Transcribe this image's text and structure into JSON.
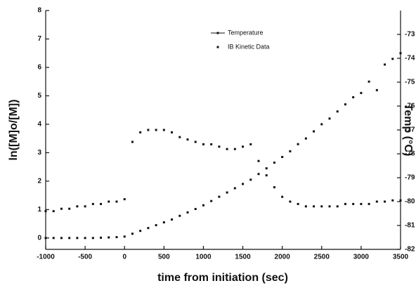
{
  "chart_data": {
    "type": "scatter",
    "x_label": "time from initiation (sec)",
    "y_label": "ln([M]o/[M])",
    "y2_label": "Temp (°C)",
    "xlim": [
      -1000,
      3500
    ],
    "xticks": [
      -1000,
      -500,
      0,
      500,
      1000,
      1500,
      2000,
      2500,
      3000,
      3500
    ],
    "ylim": [
      -0.4,
      8
    ],
    "yticks": [
      0,
      1,
      2,
      3,
      4,
      5,
      6,
      7,
      8
    ],
    "y2lim": [
      -82,
      -72
    ],
    "y2ticks": [
      -82,
      -81,
      -80,
      -79,
      -78,
      -77,
      -76,
      -75,
      -74,
      -73
    ],
    "legend": "upper center",
    "x": [
      -1000,
      -900,
      -800,
      -700,
      -600,
      -500,
      -400,
      -300,
      -200,
      -100,
      0,
      100,
      200,
      300,
      400,
      500,
      600,
      700,
      800,
      900,
      1000,
      1100,
      1200,
      1300,
      1400,
      1500,
      1600,
      1700,
      1800,
      1900,
      2000,
      2100,
      2200,
      2300,
      2400,
      2500,
      2600,
      2700,
      2800,
      2900,
      3000,
      3100,
      3200,
      3300,
      3400,
      3500
    ],
    "series": [
      {
        "name": "Temperature",
        "color": "#111111",
        "axis": "y2",
        "values": [
          -80.4,
          -80.4,
          -80.3,
          -80.3,
          -80.2,
          -80.2,
          -80.1,
          -80.1,
          -80.0,
          -80.0,
          -79.9,
          -77.5,
          -77.1,
          -77.0,
          -77.0,
          -77.0,
          -77.1,
          -77.3,
          -77.4,
          -77.5,
          -77.6,
          -77.6,
          -77.7,
          -77.8,
          -77.8,
          -77.7,
          -77.6,
          -78.3,
          -78.9,
          -79.4,
          -79.8,
          -80.0,
          -80.1,
          -80.2,
          -80.2,
          -80.2,
          -80.2,
          -80.2,
          -80.1,
          -80.1,
          -80.1,
          -80.1,
          -80.0,
          -80.0,
          -79.95,
          -79.95
        ]
      },
      {
        "name": "IB Kinetic Data",
        "color": "#111111",
        "values": [
          0,
          0,
          0,
          0,
          0,
          0,
          0,
          0.01,
          0.02,
          0.03,
          0.05,
          0.15,
          0.25,
          0.35,
          0.45,
          0.55,
          0.65,
          0.78,
          0.9,
          1.02,
          1.15,
          1.3,
          1.45,
          1.6,
          1.75,
          1.9,
          2.05,
          2.25,
          2.45,
          2.65,
          2.85,
          3.05,
          3.3,
          3.5,
          3.75,
          4.0,
          4.2,
          4.45,
          4.7,
          4.95,
          5.1,
          5.5,
          5.2,
          6.1,
          6.3,
          6.5
        ]
      }
    ]
  }
}
